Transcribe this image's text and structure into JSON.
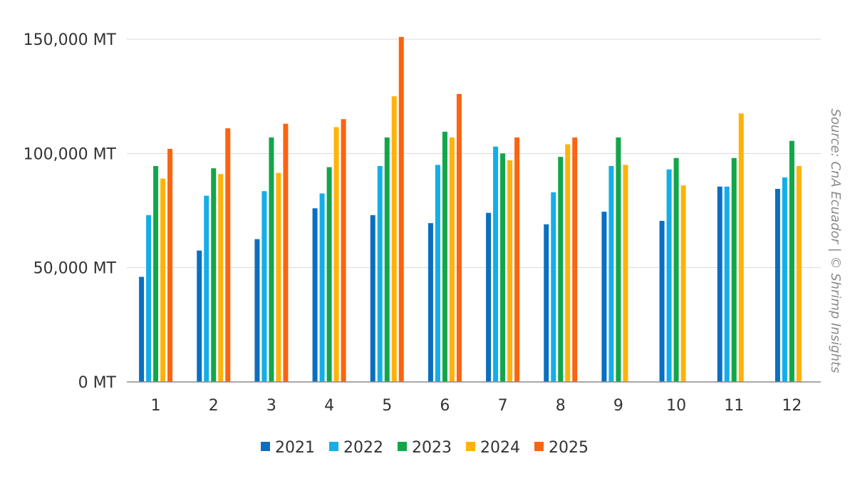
{
  "chart_data": {
    "type": "bar",
    "categories": [
      "1",
      "2",
      "3",
      "4",
      "5",
      "6",
      "7",
      "8",
      "9",
      "10",
      "11",
      "12"
    ],
    "series": [
      {
        "name": "2021",
        "color": "#0b6fc0",
        "values": [
          46000,
          57500,
          62500,
          76000,
          73000,
          69500,
          74000,
          69000,
          74500,
          70500,
          85500,
          84500
        ]
      },
      {
        "name": "2022",
        "color": "#13aee8",
        "values": [
          73000,
          81500,
          83500,
          82500,
          94500,
          95000,
          103000,
          83000,
          94500,
          93000,
          85500,
          89500
        ]
      },
      {
        "name": "2023",
        "color": "#12a64a",
        "values": [
          94500,
          93500,
          107000,
          94000,
          107000,
          109500,
          100000,
          98500,
          107000,
          98000,
          98000,
          105500
        ]
      },
      {
        "name": "2024",
        "color": "#ffb20a",
        "values": [
          89000,
          91000,
          91500,
          111500,
          125000,
          107000,
          97000,
          104000,
          95000,
          86000,
          117500,
          94500
        ]
      },
      {
        "name": "2025",
        "color": "#fb6410",
        "values": [
          102000,
          111000,
          113000,
          115000,
          151000,
          126000,
          107000,
          107000,
          null,
          null,
          null,
          null
        ]
      }
    ],
    "y_ticks": [
      {
        "value": 0,
        "label": "0 MT"
      },
      {
        "value": 50000,
        "label": "50,000 MT"
      },
      {
        "value": 100000,
        "label": "100,000 MT"
      },
      {
        "value": 150000,
        "label": "150,000 MT"
      }
    ],
    "ylim": [
      0,
      150000
    ],
    "grid": true,
    "legend_position": "bottom-center",
    "source": "Source: CnA Ecuador | © Shrimp Insights"
  }
}
